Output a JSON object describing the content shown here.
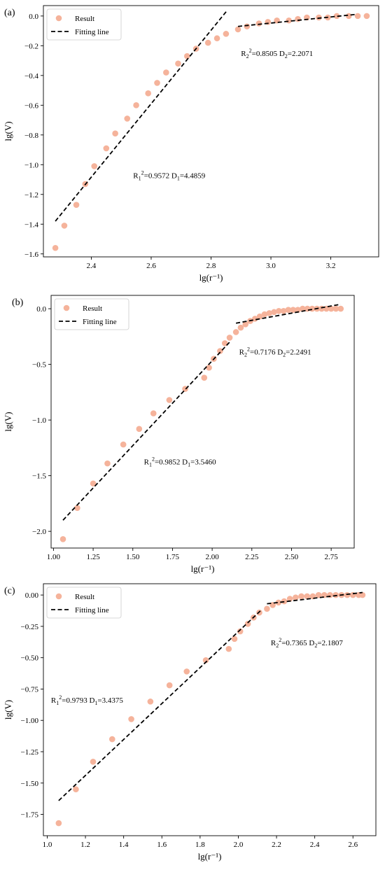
{
  "chart_data": [
    {
      "type": "scatter",
      "panel_label": "(a)",
      "xlabel": "lg(r⁻¹)",
      "ylabel": "lg(V)",
      "xlim": [
        2.24,
        3.36
      ],
      "ylim": [
        -1.62,
        0.07
      ],
      "xticks": [
        2.4,
        2.6,
        2.8,
        3.0,
        3.2
      ],
      "xtick_labels": [
        "2.4",
        "2.6",
        "2.8",
        "3.0",
        "3.2"
      ],
      "yticks": [
        0.0,
        -0.2,
        -0.4,
        -0.6,
        -0.8,
        -1.0,
        -1.2,
        -1.4,
        -1.6
      ],
      "ytick_labels": [
        "0.0",
        "−0.2",
        "−0.4",
        "−0.6",
        "−0.8",
        "−1.0",
        "−1.2",
        "−1.4",
        "−1.6"
      ],
      "legend": {
        "position": "top-left",
        "result_label": "Result",
        "fit_label": "Fitting line"
      },
      "marker_color": "#f5b39b",
      "series": [
        {
          "name": "Result",
          "x": [
            2.28,
            2.31,
            2.35,
            2.38,
            2.41,
            2.45,
            2.48,
            2.52,
            2.55,
            2.59,
            2.62,
            2.65,
            2.69,
            2.72,
            2.75,
            2.79,
            2.82,
            2.85,
            2.89,
            2.92,
            2.96,
            2.99,
            3.02,
            3.06,
            3.09,
            3.12,
            3.16,
            3.19,
            3.22,
            3.26,
            3.29,
            3.32
          ],
          "y": [
            -1.56,
            -1.41,
            -1.27,
            -1.13,
            -1.01,
            -0.89,
            -0.79,
            -0.69,
            -0.6,
            -0.52,
            -0.45,
            -0.38,
            -0.32,
            -0.27,
            -0.22,
            -0.18,
            -0.15,
            -0.12,
            -0.09,
            -0.07,
            -0.05,
            -0.04,
            -0.03,
            -0.03,
            -0.02,
            -0.01,
            -0.01,
            -0.01,
            0.0,
            0.0,
            0.0,
            0.0
          ]
        }
      ],
      "fit_lines": [
        {
          "name": "Fitting line",
          "x": [
            2.28,
            2.855
          ],
          "y": [
            -1.38,
            0.04
          ]
        },
        {
          "name": "Fitting line",
          "x": [
            2.89,
            3.28
          ],
          "y": [
            -0.07,
            0.01
          ]
        }
      ],
      "annotations": [
        {
          "r_label": "R",
          "r_sub": "1",
          "r_sup": "2",
          "r_value": "=0.9572 ",
          "d_label": "D",
          "d_sub": "1",
          "d_value": "=4.4859",
          "x": 2.54,
          "y": -1.09
        },
        {
          "r_label": "R",
          "r_sub": "2",
          "r_sup": "2",
          "r_value": "=0.8505 ",
          "d_label": "D",
          "d_sub": "2",
          "d_value": "=2.2071",
          "x": 2.9,
          "y": -0.27
        }
      ]
    },
    {
      "type": "scatter",
      "panel_label": "(b)",
      "xlabel": "lg(r⁻¹)",
      "ylabel": "lg(V)",
      "xlim": [
        0.985,
        2.895
      ],
      "ylim": [
        -2.15,
        0.12
      ],
      "xticks": [
        1.0,
        1.25,
        1.5,
        1.75,
        2.0,
        2.25,
        2.5,
        2.75
      ],
      "xtick_labels": [
        "1.00",
        "1.25",
        "1.50",
        "1.75",
        "2.00",
        "2.25",
        "2.50",
        "2.75"
      ],
      "yticks": [
        0.0,
        -0.5,
        -1.0,
        -1.5,
        -2.0
      ],
      "ytick_labels": [
        "0.0",
        "−0.5",
        "−1.0",
        "−1.5",
        "−2.0"
      ],
      "legend": {
        "position": "top-left",
        "result_label": "Result",
        "fit_label": "Fitting line"
      },
      "marker_color": "#f5b39b",
      "series": [
        {
          "name": "Result",
          "x": [
            1.06,
            1.15,
            1.25,
            1.34,
            1.44,
            1.54,
            1.63,
            1.73,
            1.83,
            1.95,
            1.98,
            2.01,
            2.05,
            2.08,
            2.11,
            2.15,
            2.18,
            2.21,
            2.24,
            2.27,
            2.3,
            2.33,
            2.36,
            2.39,
            2.42,
            2.45,
            2.48,
            2.51,
            2.54,
            2.57,
            2.6,
            2.63,
            2.66,
            2.69,
            2.72,
            2.75,
            2.78,
            2.81
          ],
          "y": [
            -2.07,
            -1.79,
            -1.57,
            -1.39,
            -1.22,
            -1.08,
            -0.94,
            -0.82,
            -0.72,
            -0.62,
            -0.53,
            -0.45,
            -0.38,
            -0.31,
            -0.26,
            -0.21,
            -0.17,
            -0.14,
            -0.11,
            -0.09,
            -0.07,
            -0.05,
            -0.04,
            -0.03,
            -0.02,
            -0.02,
            -0.01,
            -0.01,
            -0.01,
            0.0,
            0.0,
            0.0,
            0.0,
            0.0,
            0.0,
            0.0,
            0.0,
            0.0
          ]
        }
      ],
      "fit_lines": [
        {
          "name": "Fitting line",
          "x": [
            1.06,
            2.11
          ],
          "y": [
            -1.9,
            -0.3
          ]
        },
        {
          "name": "Fitting line",
          "x": [
            2.15,
            2.81
          ],
          "y": [
            -0.13,
            0.04
          ]
        }
      ],
      "annotations": [
        {
          "r_label": "R",
          "r_sub": "1",
          "r_sup": "2",
          "r_value": "=0.9852 ",
          "d_label": "D",
          "d_sub": "1",
          "d_value": "=3.5460",
          "x": 1.57,
          "y": -1.4
        },
        {
          "r_label": "R",
          "r_sub": "2",
          "r_sup": "2",
          "r_value": "=0.7176 ",
          "d_label": "D",
          "d_sub": "2",
          "d_value": "=2.2491",
          "x": 2.17,
          "y": -0.41
        }
      ]
    },
    {
      "type": "scatter",
      "panel_label": "(c)",
      "xlabel": "lg(r⁻¹)",
      "ylabel": "lg(V)",
      "xlim": [
        0.98,
        2.72
      ],
      "ylim": [
        -1.92,
        0.09
      ],
      "xticks": [
        1.0,
        1.2,
        1.4,
        1.6,
        1.8,
        2.0,
        2.2,
        2.4,
        2.6
      ],
      "xtick_labels": [
        "1.0",
        "1.2",
        "1.4",
        "1.6",
        "1.8",
        "2.0",
        "2.2",
        "2.4",
        "2.6"
      ],
      "yticks": [
        0.0,
        -0.25,
        -0.5,
        -0.75,
        -1.0,
        -1.25,
        -1.5,
        -1.75
      ],
      "ytick_labels": [
        "0.00",
        "−0.25",
        "−0.50",
        "−0.75",
        "−1.00",
        "−1.25",
        "−1.50",
        "−1.75"
      ],
      "legend": {
        "position": "top-left",
        "result_label": "Result",
        "fit_label": "Fitting line"
      },
      "marker_color": "#f5b39b",
      "series": [
        {
          "name": "Result",
          "x": [
            1.06,
            1.15,
            1.24,
            1.34,
            1.44,
            1.54,
            1.64,
            1.73,
            1.83,
            1.95,
            1.98,
            2.01,
            2.05,
            2.08,
            2.11,
            2.15,
            2.18,
            2.21,
            2.24,
            2.27,
            2.3,
            2.33,
            2.36,
            2.39,
            2.42,
            2.45,
            2.48,
            2.51,
            2.54,
            2.57,
            2.6,
            2.63,
            2.65
          ],
          "y": [
            -1.82,
            -1.55,
            -1.33,
            -1.15,
            -0.99,
            -0.85,
            -0.72,
            -0.61,
            -0.52,
            -0.43,
            -0.35,
            -0.29,
            -0.23,
            -0.18,
            -0.14,
            -0.11,
            -0.08,
            -0.06,
            -0.05,
            -0.03,
            -0.02,
            -0.01,
            -0.01,
            -0.01,
            0.0,
            0.0,
            0.0,
            0.0,
            0.0,
            0.0,
            0.0,
            0.0,
            0.0
          ]
        }
      ],
      "fit_lines": [
        {
          "name": "Fitting line",
          "x": [
            1.06,
            2.12
          ],
          "y": [
            -1.64,
            -0.12
          ]
        },
        {
          "name": "Fitting line",
          "x": [
            2.15,
            2.65
          ],
          "y": [
            -0.07,
            0.02
          ]
        }
      ],
      "annotations": [
        {
          "r_label": "R",
          "r_sub": "1",
          "r_sup": "2",
          "r_value": "=0.9793 ",
          "d_label": "D",
          "d_sub": "1",
          "d_value": "=3.4375",
          "x": 1.02,
          "y": -0.86
        },
        {
          "r_label": "R",
          "r_sub": "2",
          "r_sup": "2",
          "r_value": "=0.7365 ",
          "d_label": "D",
          "d_sub": "2",
          "d_value": "=2.1807",
          "x": 2.17,
          "y": -0.4
        }
      ]
    }
  ]
}
